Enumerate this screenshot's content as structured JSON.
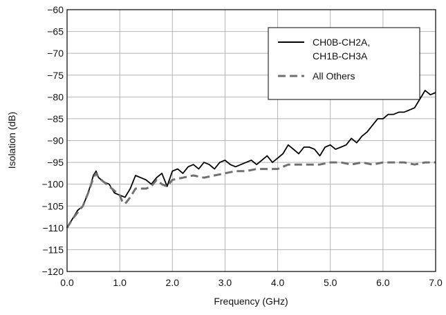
{
  "chart_data": {
    "type": "line",
    "title": "",
    "xlabel": "Frequency (GHz)",
    "ylabel": "Isolation (dB)",
    "xlim": [
      0.0,
      7.0
    ],
    "ylim": [
      -120,
      -60
    ],
    "xticks": [
      0,
      1,
      2,
      3,
      4,
      5,
      6,
      7
    ],
    "xtick_labels": [
      "0.0",
      "1.0",
      "2.0",
      "3.0",
      "4.0",
      "5.0",
      "6.0",
      "7.0"
    ],
    "yticks": [
      -60,
      -65,
      -70,
      -75,
      -80,
      -85,
      -90,
      -95,
      -100,
      -105,
      -110,
      -115,
      -120
    ],
    "ytick_labels": [
      "−60",
      "−65",
      "−70",
      "−75",
      "−80",
      "−85",
      "−90",
      "−95",
      "−100",
      "−105",
      "−110",
      "−115",
      "−120"
    ],
    "grid": true,
    "legend_position": "top-right",
    "series": [
      {
        "name": "CH0B-CH2A,\nCH1B-CH3A",
        "label_lines": [
          "CH0B-CH2A,",
          "CH1B-CH3A"
        ],
        "color": "#000000",
        "style": "solid",
        "x": [
          0.0,
          0.1,
          0.2,
          0.3,
          0.4,
          0.5,
          0.55,
          0.6,
          0.7,
          0.8,
          0.9,
          1.0,
          1.1,
          1.2,
          1.3,
          1.4,
          1.5,
          1.6,
          1.7,
          1.8,
          1.9,
          2.0,
          2.1,
          2.2,
          2.3,
          2.4,
          2.5,
          2.6,
          2.7,
          2.8,
          2.9,
          3.0,
          3.1,
          3.2,
          3.3,
          3.4,
          3.5,
          3.6,
          3.7,
          3.8,
          3.9,
          4.0,
          4.1,
          4.2,
          4.3,
          4.4,
          4.5,
          4.6,
          4.7,
          4.8,
          4.9,
          5.0,
          5.1,
          5.2,
          5.3,
          5.4,
          5.5,
          5.6,
          5.7,
          5.8,
          5.9,
          6.0,
          6.1,
          6.2,
          6.3,
          6.4,
          6.5,
          6.6,
          6.7,
          6.8,
          6.9,
          7.0
        ],
        "y": [
          -110,
          -108,
          -106,
          -105,
          -102,
          -98,
          -97,
          -98.5,
          -99.5,
          -100,
          -102,
          -102.5,
          -103,
          -101,
          -98,
          -98.5,
          -99,
          -100,
          -98.5,
          -97.5,
          -100.5,
          -97,
          -96.5,
          -97.5,
          -96,
          -95.5,
          -96.5,
          -95,
          -95.5,
          -96.5,
          -95,
          -94.5,
          -95.5,
          -96,
          -95.5,
          -95,
          -94.5,
          -95.5,
          -94.5,
          -93.5,
          -95,
          -94,
          -93,
          -91,
          -92,
          -93,
          -91.5,
          -91.5,
          -92,
          -93.5,
          -91.5,
          -91,
          -92,
          -91.5,
          -91,
          -89.5,
          -90.5,
          -89,
          -88,
          -86.5,
          -85,
          -85,
          -84,
          -84,
          -83.5,
          -83.5,
          -83,
          -82.5,
          -80.5,
          -78.5,
          -79.5,
          -79
        ]
      },
      {
        "name": "All Others",
        "label_lines": [
          "All Others"
        ],
        "color": "#707070",
        "style": "dashed",
        "x": [
          0.0,
          0.1,
          0.2,
          0.3,
          0.4,
          0.5,
          0.55,
          0.6,
          0.7,
          0.8,
          0.9,
          1.0,
          1.05,
          1.1,
          1.2,
          1.3,
          1.4,
          1.5,
          1.6,
          1.7,
          1.8,
          1.9,
          2.0,
          2.2,
          2.4,
          2.6,
          2.8,
          3.0,
          3.2,
          3.4,
          3.6,
          3.8,
          4.0,
          4.2,
          4.4,
          4.6,
          4.8,
          5.0,
          5.2,
          5.4,
          5.6,
          5.8,
          6.0,
          6.2,
          6.4,
          6.6,
          6.8,
          7.0
        ],
        "y": [
          -110,
          -108,
          -106.5,
          -105,
          -102,
          -98.5,
          -97.5,
          -98.5,
          -99.5,
          -100.5,
          -101.5,
          -102.5,
          -104,
          -104.5,
          -103,
          -101,
          -101,
          -101,
          -100.5,
          -99,
          -100,
          -100.5,
          -99,
          -98.5,
          -98,
          -98.5,
          -98,
          -97.5,
          -97,
          -97,
          -96.5,
          -96.5,
          -96.5,
          -95.5,
          -95.5,
          -95.5,
          -95.5,
          -95,
          -95,
          -95.5,
          -95,
          -95.5,
          -95,
          -95,
          -95,
          -95.5,
          -95,
          -95
        ]
      }
    ]
  }
}
